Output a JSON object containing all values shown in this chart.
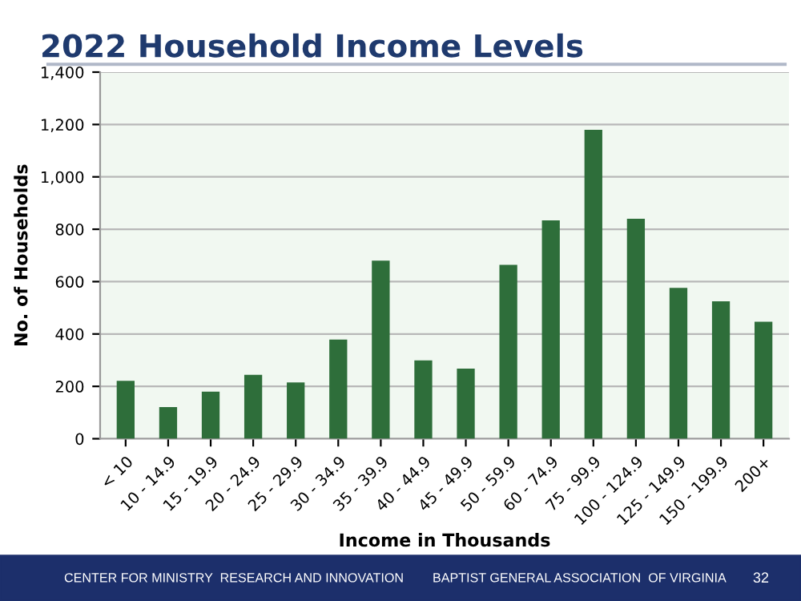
{
  "chart_data": {
    "type": "bar",
    "title": "2022 Household Income Levels",
    "xlabel": "Income in Thousands",
    "ylabel": "No. of Households",
    "categories": [
      "< 10",
      "10 - 14.9",
      "15 - 19.9",
      "20 - 24.9",
      "25 - 29.9",
      "30 - 34.9",
      "35 - 39.9",
      "40 - 44.9",
      "45 - 49.9",
      "50 - 59.9",
      "60 - 74.9",
      "75 - 99.9",
      "100 - 124.9",
      "125 - 149.9",
      "150 - 199.9",
      "200+"
    ],
    "values": [
      221,
      121,
      180,
      244,
      215,
      379,
      680,
      299,
      268,
      664,
      834,
      1180,
      840,
      576,
      525,
      447
    ],
    "color": "#2e6e3a",
    "ylim": [
      0,
      1400
    ],
    "yticks": [
      0,
      {
        "value": 200,
        "label": "200"
      },
      {
        "value": 400,
        "label": "400"
      },
      {
        "value": 600,
        "label": "600"
      },
      {
        "value": 800,
        "label": "800"
      },
      {
        "value": 1000,
        "label": "1,000"
      },
      {
        "value": 1200,
        "label": "1,200"
      },
      {
        "value": 1400,
        "label": "1,400"
      }
    ],
    "grid": "y",
    "annotations": [
      "CENTER FOR MINISTRY  RESEARCH AND INNOVATION",
      "BAPTIST GENERAL ASSOCIATION  OF VIRGINIA",
      "32"
    ]
  }
}
